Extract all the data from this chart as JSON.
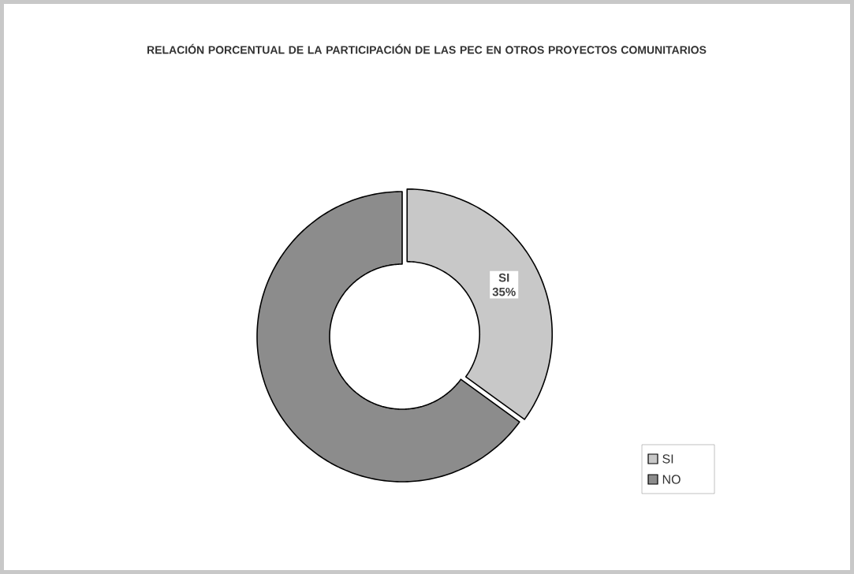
{
  "chart_data": {
    "type": "donut",
    "title": "RELACIÓN PORCENTUAL DE LA PARTICIPACIÓN DE LAS PEC EN OTROS PROYECTOS COMUNITARIOS",
    "categories": [
      "SI",
      "NO"
    ],
    "values": [
      35,
      65
    ],
    "colors": [
      "#c8c8c8",
      "#8c8c8c"
    ],
    "value_labels": [
      "35%",
      null
    ],
    "legend": "right"
  }
}
